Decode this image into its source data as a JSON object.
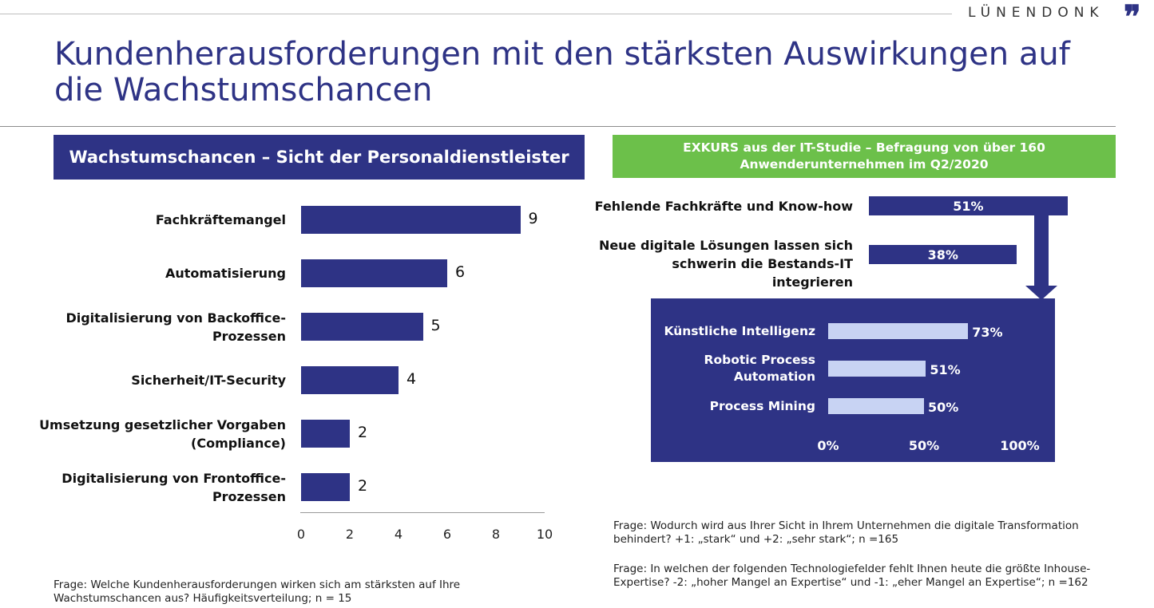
{
  "brand": {
    "name": "LÜNENDONK",
    "mark": "❞"
  },
  "title": "Kundenherausforderungen mit den stärksten Auswirkungen auf die Wachstumschancen",
  "left_panel": {
    "header": "Wachstumschancen – Sicht der Personaldienstleister",
    "question": "Frage: Welche Kundenherausforderungen wirken sich am stärksten auf Ihre Wachstumschancen aus? Häufigkeitsverteilung; n = 15"
  },
  "right_panel": {
    "header_line1": "EXKURS aus der IT-Studie – Befragung von über 160",
    "header_line2": "Anwenderunternehmen im Q2/2020",
    "question1": "Frage: Wodurch wird aus Ihrer Sicht in Ihrem Unternehmen die digitale Transformation behindert? +1: „stark“ und +2: „sehr stark“; n =165",
    "question2": "Frage: In welchen der folgenden Technologiefelder fehlt Ihnen heute die größte Inhouse-Expertise? -2: „hoher Mangel an Expertise“ und -1: „eher Mangel an Expertise“; n =162"
  },
  "colors": {
    "primary": "#2e3385",
    "accent_green": "#6cc04a",
    "light_bar": "#c8d3f3"
  },
  "chart_data": [
    {
      "type": "bar",
      "orientation": "horizontal",
      "categories": [
        [
          "Fachkräftemangel"
        ],
        [
          "Automatisierung"
        ],
        [
          "Digitalisierung von Backoffice-",
          "Prozessen"
        ],
        [
          "Sicherheit/IT-Security"
        ],
        [
          "Umsetzung gesetzlicher Vorgaben",
          "(Compliance)"
        ],
        [
          "Digitalisierung von Frontoffice-",
          "Prozessen"
        ]
      ],
      "values": [
        9,
        6,
        5,
        4,
        2,
        2
      ],
      "xlim": [
        0,
        10
      ],
      "xticks": [
        0,
        2,
        4,
        6,
        8,
        10
      ],
      "grid": false
    },
    {
      "type": "bar",
      "orientation": "horizontal",
      "categories": [
        [
          "Fehlende Fachkräfte und Know-how"
        ],
        [
          "Neue digitale Lösungen lassen sich",
          "schwerin die Bestands-IT integrieren"
        ]
      ],
      "values": [
        51,
        38
      ],
      "labels": [
        "51%",
        "38%"
      ]
    },
    {
      "type": "bar",
      "orientation": "horizontal",
      "categories": [
        [
          "Künstliche Intelligenz"
        ],
        [
          "Robotic Process",
          "Automation"
        ],
        [
          "Process Mining"
        ]
      ],
      "values": [
        73,
        51,
        50
      ],
      "labels": [
        "73%",
        "51%",
        "50%"
      ],
      "xlim": [
        0,
        100
      ],
      "xticks": [
        "0%",
        "50%",
        "100%"
      ]
    }
  ]
}
